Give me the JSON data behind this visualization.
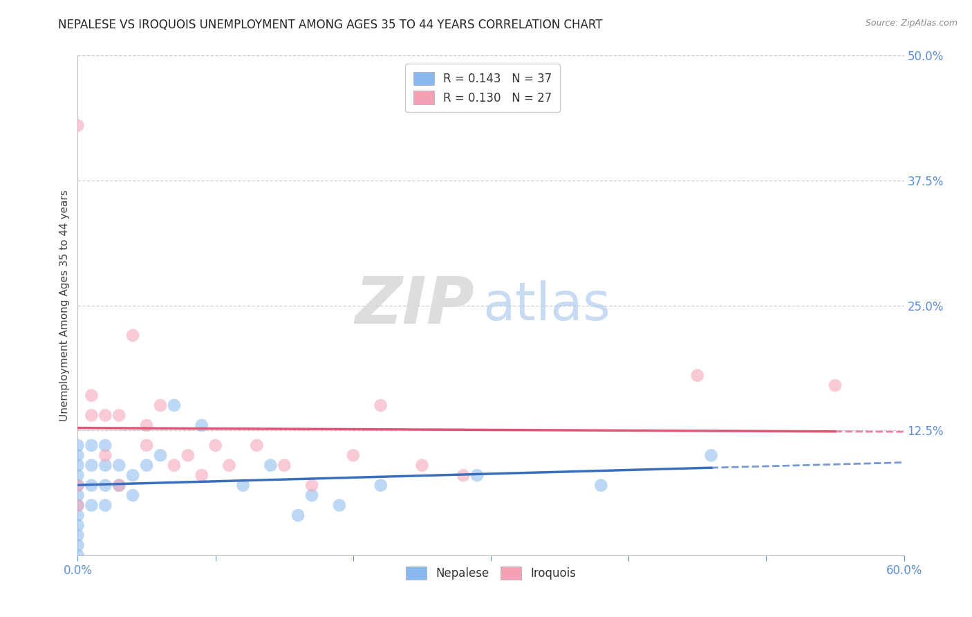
{
  "title": "NEPALESE VS IROQUOIS UNEMPLOYMENT AMONG AGES 35 TO 44 YEARS CORRELATION CHART",
  "source": "Source: ZipAtlas.com",
  "ylabel": "Unemployment Among Ages 35 to 44 years",
  "xlim": [
    0.0,
    0.6
  ],
  "ylim": [
    0.0,
    0.5
  ],
  "nepalese_color": "#88b8ed",
  "iroquois_color": "#f4a0b5",
  "nepalese_line_color": "#3a6ebd",
  "iroquois_line_color": "#e05575",
  "legend_R_nepalese": "0.143",
  "legend_N_nepalese": "37",
  "legend_R_iroquois": "0.130",
  "legend_N_iroquois": "27",
  "nepalese_x": [
    0.0,
    0.0,
    0.0,
    0.0,
    0.0,
    0.0,
    0.0,
    0.0,
    0.0,
    0.0,
    0.0,
    0.0,
    0.01,
    0.01,
    0.01,
    0.01,
    0.02,
    0.02,
    0.02,
    0.02,
    0.03,
    0.03,
    0.04,
    0.04,
    0.05,
    0.06,
    0.07,
    0.09,
    0.12,
    0.14,
    0.16,
    0.17,
    0.19,
    0.22,
    0.29,
    0.38,
    0.46
  ],
  "nepalese_y": [
    0.0,
    0.01,
    0.02,
    0.03,
    0.04,
    0.05,
    0.06,
    0.07,
    0.08,
    0.09,
    0.1,
    0.11,
    0.05,
    0.07,
    0.09,
    0.11,
    0.05,
    0.07,
    0.09,
    0.11,
    0.07,
    0.09,
    0.06,
    0.08,
    0.09,
    0.1,
    0.15,
    0.13,
    0.07,
    0.09,
    0.04,
    0.06,
    0.05,
    0.07,
    0.08,
    0.07,
    0.1
  ],
  "iroquois_x": [
    0.0,
    0.0,
    0.0,
    0.01,
    0.01,
    0.02,
    0.02,
    0.03,
    0.03,
    0.04,
    0.05,
    0.05,
    0.06,
    0.07,
    0.08,
    0.09,
    0.1,
    0.11,
    0.13,
    0.15,
    0.17,
    0.2,
    0.22,
    0.25,
    0.28,
    0.45,
    0.55
  ],
  "iroquois_y": [
    0.05,
    0.07,
    0.43,
    0.14,
    0.16,
    0.1,
    0.14,
    0.07,
    0.14,
    0.22,
    0.11,
    0.13,
    0.15,
    0.09,
    0.1,
    0.08,
    0.11,
    0.09,
    0.11,
    0.09,
    0.07,
    0.1,
    0.15,
    0.09,
    0.08,
    0.18,
    0.17
  ],
  "background_color": "#ffffff",
  "grid_color": "#cccccc",
  "title_color": "#222222",
  "tick_color": "#5b8dd9",
  "marker_size": 180,
  "alpha": 0.55
}
